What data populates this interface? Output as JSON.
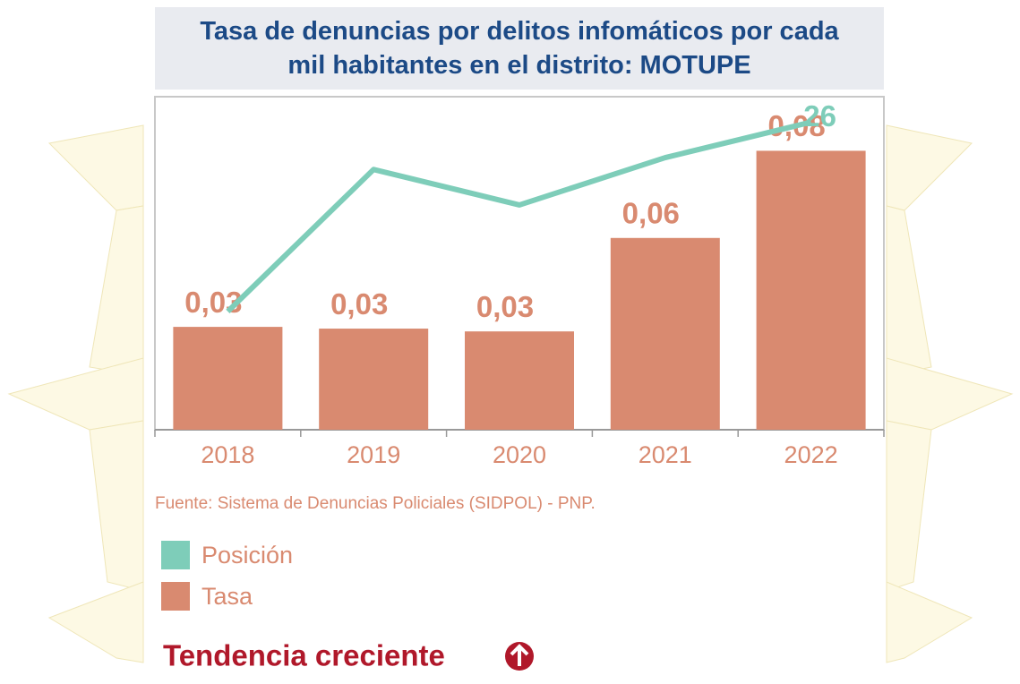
{
  "chart_data": {
    "type": "bar",
    "title": "Tasa de denuncias por delitos infomáticos por cada mil habitantes en el distrito: MOTUPE",
    "categories": [
      "2018",
      "2019",
      "2020",
      "2021",
      "2022"
    ],
    "ylim": [
      0,
      0.095
    ],
    "y2lim": [
      0,
      28
    ],
    "series": [
      {
        "name": "Posición",
        "type": "line",
        "axis": "y2",
        "color": "#7ecdb9",
        "values": [
          10,
          22,
          19,
          23,
          26
        ]
      },
      {
        "name": "Tasa",
        "type": "bar",
        "color": "#d98a70",
        "values": [
          0.0295,
          0.029,
          0.0282,
          0.055,
          0.08
        ],
        "value_labels": [
          "0,03",
          "0,03",
          "0,03",
          "0,06",
          "0,08"
        ]
      }
    ],
    "source": "Fuente: Sistema de Denuncias Policiales (SIDPOL) - PNP.",
    "annotation": "Tendencia creciente"
  }
}
